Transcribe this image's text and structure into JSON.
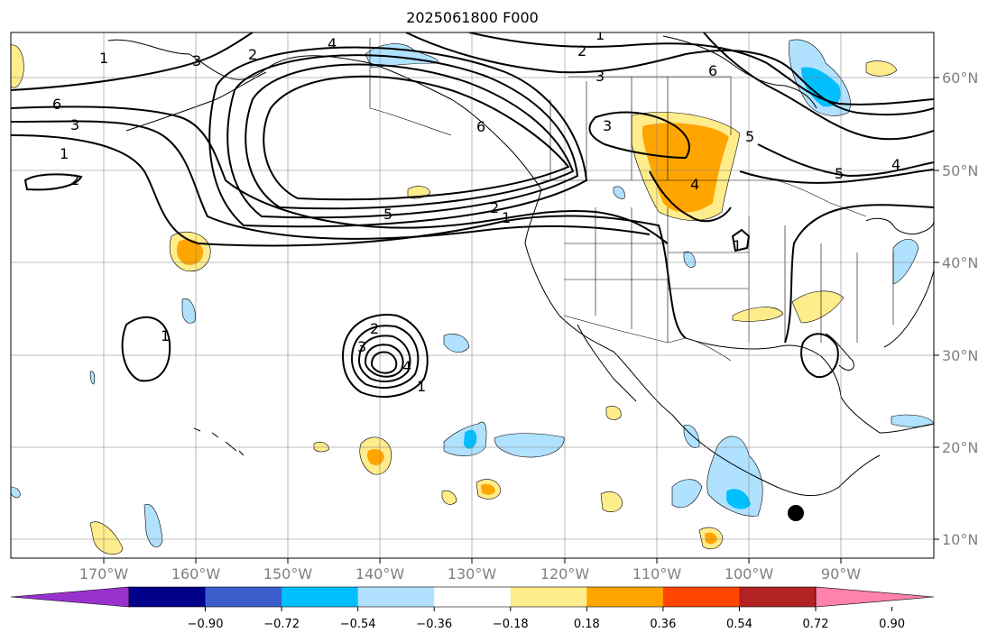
{
  "title": "2025061800 F000",
  "map": {
    "projection": "PlateCarree",
    "lon_range": [
      -180,
      -80
    ],
    "lat_range": [
      8,
      65
    ],
    "lon_ticks": [
      "170°W",
      "160°W",
      "150°W",
      "140°W",
      "130°W",
      "120°W",
      "110°W",
      "100°W",
      "90°W"
    ],
    "lat_ticks": [
      "60°N",
      "50°N",
      "40°N",
      "30°N",
      "20°N",
      "10°N"
    ],
    "contour_labels": [
      "1",
      "2",
      "3",
      "4",
      "5",
      "6",
      "1",
      "2",
      "3",
      "4",
      "5",
      "6",
      "1",
      "2",
      "3",
      "4",
      "5",
      "1",
      "2",
      "3",
      "4",
      "1",
      "2",
      "1",
      "3",
      "1",
      "6"
    ],
    "marker": "black-dot"
  },
  "colorbar": {
    "ticks": [
      "−0.90",
      "−0.72",
      "−0.54",
      "−0.36",
      "−0.18",
      "0.18",
      "0.36",
      "0.54",
      "0.72",
      "0.90"
    ],
    "colors": [
      "#9932cc",
      "#00008b",
      "#3a5fcd",
      "#00bfff",
      "#b0e2ff",
      "#ffffff",
      "#ffec8b",
      "#ffa500",
      "#ff4500",
      "#b22222",
      "#ff82ab"
    ],
    "extend": "both"
  }
}
